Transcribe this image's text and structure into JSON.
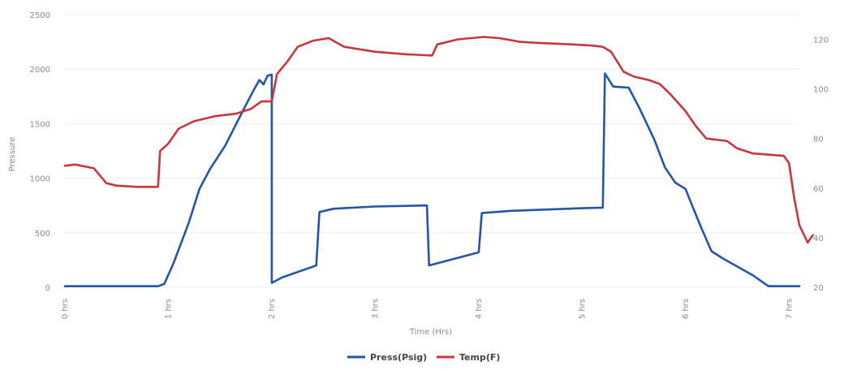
{
  "chart_data": {
    "type": "line",
    "title": "",
    "xlabel": "Time (Hrs)",
    "ylabel": "Pressure",
    "y2label": "",
    "x_ticks": [
      {
        "value": 0,
        "label": "0 hrs"
      },
      {
        "value": 1,
        "label": "1 hrs"
      },
      {
        "value": 2,
        "label": "2 hrs"
      },
      {
        "value": 3,
        "label": "3 hrs"
      },
      {
        "value": 4,
        "label": "4 hrs"
      },
      {
        "value": 5,
        "label": "5 hrs"
      },
      {
        "value": 6,
        "label": "6 hrs"
      },
      {
        "value": 7,
        "label": "7 hrs"
      }
    ],
    "xlim": [
      0,
      7.1
    ],
    "ylim": [
      0,
      2500
    ],
    "y_ticks": [
      0,
      500,
      1000,
      1500,
      2000,
      2500
    ],
    "y2lim": [
      20,
      130
    ],
    "y2_ticks": [
      20,
      40,
      60,
      80,
      100,
      120
    ],
    "grid": true,
    "legend_position": "bottom",
    "series": [
      {
        "name": "Press(Psig)",
        "axis": "left",
        "color": "#2456a8",
        "points": [
          [
            0,
            10
          ],
          [
            0.9,
            10
          ],
          [
            0.96,
            30
          ],
          [
            1.05,
            220
          ],
          [
            1.2,
            600
          ],
          [
            1.3,
            900
          ],
          [
            1.4,
            1080
          ],
          [
            1.55,
            1300
          ],
          [
            1.7,
            1580
          ],
          [
            1.82,
            1800
          ],
          [
            1.88,
            1900
          ],
          [
            1.92,
            1860
          ],
          [
            1.96,
            1940
          ],
          [
            2.0,
            1950
          ],
          [
            2.0,
            40
          ],
          [
            2.1,
            90
          ],
          [
            2.4,
            190
          ],
          [
            2.43,
            200
          ],
          [
            2.46,
            690
          ],
          [
            2.6,
            720
          ],
          [
            3.0,
            740
          ],
          [
            3.5,
            750
          ],
          [
            3.52,
            200
          ],
          [
            4.0,
            320
          ],
          [
            4.03,
            680
          ],
          [
            4.3,
            700
          ],
          [
            5.0,
            725
          ],
          [
            5.2,
            730
          ],
          [
            5.22,
            1960
          ],
          [
            5.3,
            1840
          ],
          [
            5.45,
            1830
          ],
          [
            5.55,
            1650
          ],
          [
            5.7,
            1350
          ],
          [
            5.8,
            1100
          ],
          [
            5.9,
            960
          ],
          [
            6.0,
            900
          ],
          [
            6.05,
            780
          ],
          [
            6.15,
            550
          ],
          [
            6.25,
            330
          ],
          [
            6.35,
            270
          ],
          [
            6.5,
            190
          ],
          [
            6.65,
            110
          ],
          [
            6.8,
            10
          ],
          [
            7.1,
            10
          ]
        ]
      },
      {
        "name": "Temp(F)",
        "axis": "right",
        "color": "#c8373b",
        "points": [
          [
            0,
            69
          ],
          [
            0.1,
            69.5
          ],
          [
            0.28,
            68
          ],
          [
            0.4,
            62
          ],
          [
            0.5,
            61
          ],
          [
            0.7,
            60.5
          ],
          [
            0.9,
            60.5
          ],
          [
            0.92,
            75
          ],
          [
            1.0,
            78
          ],
          [
            1.1,
            84
          ],
          [
            1.25,
            87
          ],
          [
            1.45,
            89
          ],
          [
            1.65,
            90
          ],
          [
            1.8,
            92
          ],
          [
            1.9,
            95
          ],
          [
            2.0,
            95
          ],
          [
            2.05,
            106
          ],
          [
            2.15,
            111
          ],
          [
            2.25,
            117
          ],
          [
            2.4,
            119.5
          ],
          [
            2.55,
            120.5
          ],
          [
            2.7,
            117
          ],
          [
            3.0,
            115
          ],
          [
            3.3,
            114
          ],
          [
            3.55,
            113.5
          ],
          [
            3.6,
            118
          ],
          [
            3.8,
            120
          ],
          [
            4.05,
            121
          ],
          [
            4.2,
            120.5
          ],
          [
            4.4,
            119
          ],
          [
            4.6,
            118.5
          ],
          [
            4.9,
            118
          ],
          [
            5.1,
            117.5
          ],
          [
            5.2,
            117
          ],
          [
            5.28,
            115
          ],
          [
            5.4,
            107
          ],
          [
            5.5,
            105
          ],
          [
            5.65,
            103.5
          ],
          [
            5.75,
            102
          ],
          [
            5.85,
            98
          ],
          [
            6.0,
            91
          ],
          [
            6.1,
            85
          ],
          [
            6.2,
            80
          ],
          [
            6.4,
            79
          ],
          [
            6.5,
            76
          ],
          [
            6.65,
            74
          ],
          [
            6.8,
            73.5
          ],
          [
            6.95,
            73
          ],
          [
            7.0,
            70
          ],
          [
            7.05,
            56
          ],
          [
            7.1,
            45
          ],
          [
            7.18,
            38
          ],
          [
            7.23,
            41
          ]
        ]
      }
    ]
  }
}
